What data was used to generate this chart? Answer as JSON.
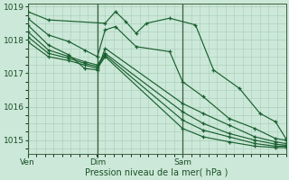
{
  "title": "Pression niveau de la mer( hPa )",
  "bg_color": "#cce8d8",
  "grid_color": "#a8cdb8",
  "line_color": "#1a6030",
  "ylim": [
    1014.6,
    1019.1
  ],
  "yticks": [
    1015,
    1016,
    1017,
    1018,
    1019
  ],
  "xtick_labels": [
    "Ven",
    "Dim",
    "Sam"
  ],
  "vline_x": [
    0.0,
    0.27,
    0.6
  ],
  "series": [
    {
      "x": [
        0.0,
        0.08,
        0.3,
        0.34,
        0.38,
        0.42,
        0.46,
        0.55,
        0.65,
        0.72,
        0.82,
        0.9,
        0.96,
        1.0
      ],
      "y": [
        1018.85,
        1018.6,
        1018.5,
        1018.85,
        1018.55,
        1018.2,
        1018.5,
        1018.65,
        1018.45,
        1017.1,
        1016.55,
        1015.8,
        1015.55,
        1015.05
      ]
    },
    {
      "x": [
        0.0,
        0.08,
        0.16,
        0.22,
        0.27,
        0.3,
        0.34,
        0.42,
        0.55,
        0.6,
        0.68,
        0.78,
        0.88,
        0.96,
        1.0
      ],
      "y": [
        1018.65,
        1018.15,
        1017.95,
        1017.7,
        1017.5,
        1018.3,
        1018.4,
        1017.8,
        1017.65,
        1016.75,
        1016.3,
        1015.65,
        1015.35,
        1015.05,
        1015.0
      ]
    },
    {
      "x": [
        0.0,
        0.08,
        0.16,
        0.22,
        0.27,
        0.3,
        0.6,
        0.68,
        0.78,
        0.88,
        0.96,
        1.0
      ],
      "y": [
        1018.45,
        1017.85,
        1017.55,
        1017.15,
        1017.1,
        1017.75,
        1016.1,
        1015.8,
        1015.45,
        1015.1,
        1014.95,
        1014.9
      ]
    },
    {
      "x": [
        0.0,
        0.08,
        0.16,
        0.22,
        0.27,
        0.3,
        0.6,
        0.68,
        0.78,
        0.88,
        0.96,
        1.0
      ],
      "y": [
        1018.25,
        1017.7,
        1017.5,
        1017.35,
        1017.25,
        1017.6,
        1015.85,
        1015.5,
        1015.2,
        1015.0,
        1014.88,
        1014.85
      ]
    },
    {
      "x": [
        0.0,
        0.08,
        0.16,
        0.22,
        0.27,
        0.3,
        0.6,
        0.68,
        0.78,
        0.88,
        0.96,
        1.0
      ],
      "y": [
        1018.1,
        1017.6,
        1017.45,
        1017.3,
        1017.2,
        1017.55,
        1015.6,
        1015.3,
        1015.1,
        1014.9,
        1014.82,
        1014.82
      ]
    },
    {
      "x": [
        0.0,
        0.08,
        0.16,
        0.22,
        0.27,
        0.3,
        0.6,
        0.68,
        0.78,
        0.88,
        0.96,
        1.0
      ],
      "y": [
        1017.95,
        1017.5,
        1017.38,
        1017.25,
        1017.15,
        1017.5,
        1015.35,
        1015.1,
        1014.95,
        1014.82,
        1014.78,
        1014.78
      ]
    }
  ]
}
